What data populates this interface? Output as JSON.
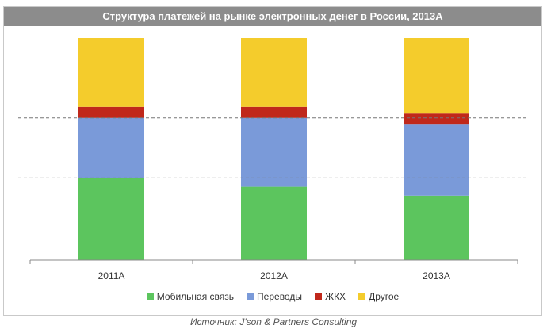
{
  "chart_data": {
    "type": "bar",
    "stacked": true,
    "normalized": true,
    "title": "Структура платежей на рынке электронных денег в России, 2013А",
    "categories": [
      "2011А",
      "2012А",
      "2013А"
    ],
    "series": [
      {
        "name": "Мобильная связь",
        "color": "#5cc55e",
        "values": [
          37,
          33,
          29
        ]
      },
      {
        "name": "Переводы",
        "color": "#7a9ad9",
        "values": [
          27,
          31,
          32
        ]
      },
      {
        "name": "ЖКХ",
        "color": "#c0281b",
        "values": [
          5,
          5,
          5
        ]
      },
      {
        "name": "Другое",
        "color": "#f4cc2c",
        "values": [
          31,
          31,
          34
        ]
      }
    ],
    "ylim": [
      0,
      100
    ],
    "reference_lines": [
      37,
      64
    ],
    "legend_position": "bottom",
    "grid": false
  },
  "source": "Источник: J'son & Partners Consulting"
}
